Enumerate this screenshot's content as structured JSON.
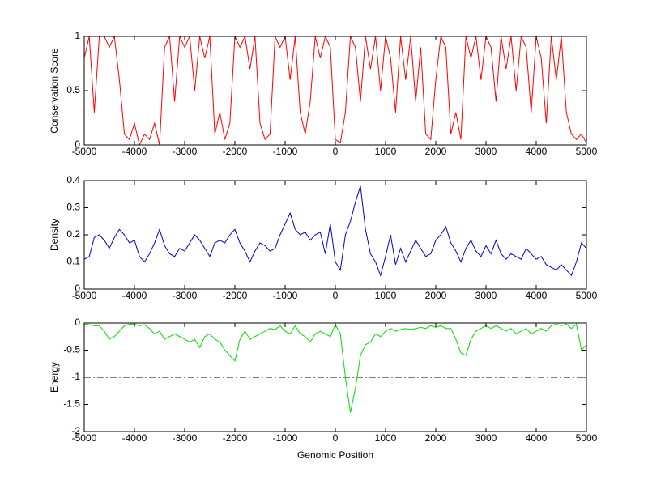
{
  "chart_data": [
    {
      "type": "line",
      "y_label": "Conservation Score",
      "color": "#ff0000",
      "x": [
        -5000,
        -4900,
        -4800,
        -4700,
        -4600,
        -4500,
        -4400,
        -4300,
        -4200,
        -4100,
        -4000,
        -3900,
        -3800,
        -3700,
        -3600,
        -3500,
        -3400,
        -3300,
        -3200,
        -3100,
        -3000,
        -2900,
        -2800,
        -2700,
        -2600,
        -2500,
        -2400,
        -2300,
        -2200,
        -2100,
        -2000,
        -1900,
        -1800,
        -1700,
        -1600,
        -1500,
        -1400,
        -1300,
        -1200,
        -1100,
        -1000,
        -900,
        -800,
        -700,
        -600,
        -500,
        -400,
        -300,
        -200,
        -100,
        0,
        100,
        200,
        300,
        400,
        500,
        600,
        700,
        800,
        900,
        1000,
        1100,
        1200,
        1300,
        1400,
        1500,
        1600,
        1700,
        1800,
        1900,
        2000,
        2100,
        2200,
        2300,
        2400,
        2500,
        2600,
        2700,
        2800,
        2900,
        3000,
        3100,
        3200,
        3300,
        3400,
        3500,
        3600,
        3700,
        3800,
        3900,
        4000,
        4100,
        4200,
        4300,
        4400,
        4500,
        4600,
        4700,
        4800,
        4900,
        5000
      ],
      "values": [
        0.8,
        1,
        0.3,
        1,
        1,
        0.9,
        1,
        0.6,
        0.1,
        0.05,
        0.2,
        0,
        0.1,
        0.05,
        0.2,
        0,
        0.9,
        1,
        0.4,
        1,
        0.9,
        1,
        0.5,
        1,
        0.8,
        1,
        0.1,
        0.3,
        0.05,
        0.2,
        1,
        0.9,
        1,
        0.7,
        1,
        0.2,
        0.05,
        0.1,
        1,
        0.9,
        1,
        0.6,
        1,
        0.3,
        0.1,
        0.4,
        1,
        0.8,
        1,
        0.9,
        0.05,
        0.02,
        0.3,
        1,
        0.9,
        0.4,
        1,
        0.7,
        1,
        0.5,
        1,
        0.8,
        0.3,
        1,
        0.6,
        1,
        0.4,
        0.9,
        0.1,
        0.05,
        0.6,
        1,
        0.9,
        0.1,
        0.3,
        0.05,
        1,
        0.8,
        1,
        0.6,
        1,
        0.9,
        0.4,
        1,
        0.7,
        1,
        0.5,
        1,
        0.9,
        0.3,
        1,
        0.8,
        0.2,
        1,
        0.6,
        1,
        0.3,
        0.1,
        0.05,
        0.1,
        0.02
      ],
      "xlim": [
        -5000,
        5000
      ],
      "xticks": [
        -5000,
        -4000,
        -3000,
        -2000,
        -1000,
        0,
        1000,
        2000,
        3000,
        4000,
        5000
      ],
      "ylim": [
        0,
        1
      ],
      "yticks": [
        0,
        0.5,
        1
      ]
    },
    {
      "type": "line",
      "y_label": "Density",
      "color": "#0000cc",
      "x": [
        -5000,
        -4900,
        -4800,
        -4700,
        -4600,
        -4500,
        -4400,
        -4300,
        -4200,
        -4100,
        -4000,
        -3900,
        -3800,
        -3700,
        -3600,
        -3500,
        -3400,
        -3300,
        -3200,
        -3100,
        -3000,
        -2900,
        -2800,
        -2700,
        -2600,
        -2500,
        -2400,
        -2300,
        -2200,
        -2100,
        -2000,
        -1900,
        -1800,
        -1700,
        -1600,
        -1500,
        -1400,
        -1300,
        -1200,
        -1100,
        -1000,
        -900,
        -800,
        -700,
        -600,
        -500,
        -400,
        -300,
        -200,
        -100,
        0,
        100,
        200,
        300,
        400,
        500,
        600,
        700,
        800,
        900,
        1000,
        1100,
        1200,
        1300,
        1400,
        1500,
        1600,
        1700,
        1800,
        1900,
        2000,
        2100,
        2200,
        2300,
        2400,
        2500,
        2600,
        2700,
        2800,
        2900,
        3000,
        3100,
        3200,
        3300,
        3400,
        3500,
        3600,
        3700,
        3800,
        3900,
        4000,
        4100,
        4200,
        4300,
        4400,
        4500,
        4600,
        4700,
        4800,
        4900,
        5000
      ],
      "values": [
        0.11,
        0.12,
        0.19,
        0.2,
        0.18,
        0.15,
        0.19,
        0.22,
        0.2,
        0.17,
        0.18,
        0.12,
        0.1,
        0.13,
        0.17,
        0.22,
        0.16,
        0.13,
        0.12,
        0.15,
        0.14,
        0.17,
        0.2,
        0.18,
        0.15,
        0.12,
        0.17,
        0.18,
        0.17,
        0.2,
        0.22,
        0.17,
        0.14,
        0.1,
        0.14,
        0.17,
        0.16,
        0.14,
        0.15,
        0.2,
        0.24,
        0.28,
        0.22,
        0.2,
        0.21,
        0.18,
        0.2,
        0.21,
        0.13,
        0.24,
        0.1,
        0.07,
        0.2,
        0.25,
        0.32,
        0.38,
        0.22,
        0.13,
        0.1,
        0.05,
        0.12,
        0.2,
        0.09,
        0.15,
        0.1,
        0.14,
        0.18,
        0.15,
        0.12,
        0.13,
        0.18,
        0.2,
        0.23,
        0.17,
        0.14,
        0.1,
        0.15,
        0.18,
        0.14,
        0.12,
        0.16,
        0.13,
        0.18,
        0.13,
        0.11,
        0.13,
        0.12,
        0.11,
        0.15,
        0.13,
        0.11,
        0.12,
        0.09,
        0.08,
        0.07,
        0.09,
        0.07,
        0.05,
        0.1,
        0.17,
        0.15
      ],
      "xlim": [
        -5000,
        5000
      ],
      "xticks": [
        -5000,
        -4000,
        -3000,
        -2000,
        -1000,
        0,
        1000,
        2000,
        3000,
        4000,
        5000
      ],
      "ylim": [
        0,
        0.4
      ],
      "yticks": [
        0,
        0.1,
        0.2,
        0.3,
        0.4
      ]
    },
    {
      "type": "line",
      "y_label": "Energy",
      "x_label": "Genomic Position",
      "color": "#00e000",
      "x": [
        -5000,
        -4900,
        -4800,
        -4700,
        -4600,
        -4500,
        -4400,
        -4300,
        -4200,
        -4100,
        -4000,
        -3900,
        -3800,
        -3700,
        -3600,
        -3500,
        -3400,
        -3300,
        -3200,
        -3100,
        -3000,
        -2900,
        -2800,
        -2700,
        -2600,
        -2500,
        -2400,
        -2300,
        -2200,
        -2100,
        -2000,
        -1900,
        -1800,
        -1700,
        -1600,
        -1500,
        -1400,
        -1300,
        -1200,
        -1100,
        -1000,
        -900,
        -800,
        -700,
        -600,
        -500,
        -400,
        -300,
        -200,
        -100,
        0,
        100,
        200,
        300,
        400,
        500,
        600,
        700,
        800,
        900,
        1000,
        1100,
        1200,
        1300,
        1400,
        1500,
        1600,
        1700,
        1800,
        1900,
        2000,
        2100,
        2200,
        2300,
        2400,
        2500,
        2600,
        2700,
        2800,
        2900,
        3000,
        3100,
        3200,
        3300,
        3400,
        3500,
        3600,
        3700,
        3800,
        3900,
        4000,
        4100,
        4200,
        4300,
        4400,
        4500,
        4600,
        4700,
        4800,
        4900,
        5000
      ],
      "values": [
        -0.02,
        -0.03,
        -0.05,
        -0.05,
        -0.15,
        -0.3,
        -0.25,
        -0.15,
        -0.05,
        -0.02,
        -0.02,
        -0.05,
        -0.03,
        -0.1,
        -0.2,
        -0.15,
        -0.3,
        -0.25,
        -0.2,
        -0.25,
        -0.3,
        -0.35,
        -0.3,
        -0.45,
        -0.25,
        -0.2,
        -0.3,
        -0.35,
        -0.5,
        -0.6,
        -0.7,
        -0.3,
        -0.15,
        -0.3,
        -0.25,
        -0.2,
        -0.15,
        -0.1,
        -0.12,
        -0.05,
        -0.15,
        -0.2,
        -0.05,
        -0.2,
        -0.25,
        -0.35,
        -0.2,
        -0.15,
        -0.2,
        -0.25,
        -0.03,
        -0.2,
        -1.0,
        -1.65,
        -1.2,
        -0.6,
        -0.4,
        -0.35,
        -0.2,
        -0.25,
        -0.15,
        -0.1,
        -0.15,
        -0.12,
        -0.1,
        -0.12,
        -0.1,
        -0.08,
        -0.1,
        -0.05,
        -0.08,
        -0.05,
        -0.1,
        -0.1,
        -0.3,
        -0.55,
        -0.6,
        -0.3,
        -0.15,
        -0.1,
        -0.05,
        -0.1,
        -0.05,
        -0.1,
        -0.15,
        -0.1,
        -0.2,
        -0.15,
        -0.1,
        -0.2,
        -0.15,
        -0.1,
        -0.15,
        -0.05,
        -0.02,
        -0.05,
        -0.02,
        -0.1,
        -0.02,
        -0.5,
        -0.4
      ],
      "xlim": [
        -5000,
        5000
      ],
      "xticks": [
        -5000,
        -4000,
        -3000,
        -2000,
        -1000,
        0,
        1000,
        2000,
        3000,
        4000,
        5000
      ],
      "ylim": [
        -2,
        0
      ],
      "yticks": [
        -2,
        -1.5,
        -1,
        -0.5,
        0
      ],
      "reference_line": {
        "value": -1,
        "style": "dash-dot",
        "color": "#000000"
      }
    }
  ]
}
